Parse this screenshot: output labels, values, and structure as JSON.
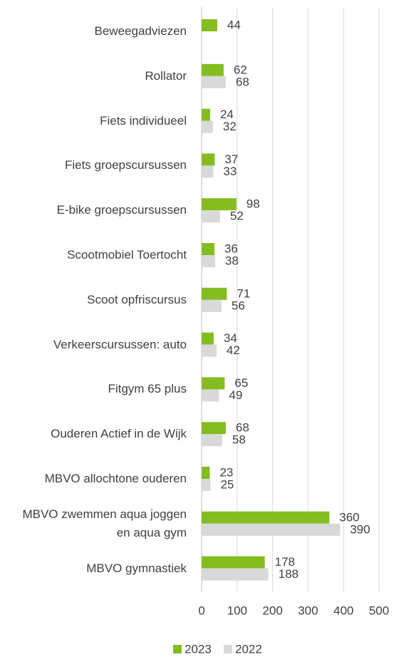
{
  "chart_data": {
    "type": "bar",
    "orientation": "horizontal",
    "categories": [
      "Beweegadviezen",
      "Rollator",
      "Fiets individueel",
      "Fiets groepscursussen",
      "E-bike groepscursussen",
      "Scootmobiel Toertocht",
      "Scoot opfriscursus",
      "Verkeerscursussen: auto",
      "Fitgym 65 plus",
      "Ouderen Actief in de Wijk",
      "MBVO allochtone ouderen",
      "MBVO zwemmen aqua joggen en aqua gym",
      "MBVO gymnastiek"
    ],
    "series": [
      {
        "name": "2023",
        "color": "#84bd1f",
        "values": [
          44,
          62,
          24,
          37,
          98,
          36,
          71,
          34,
          65,
          68,
          23,
          360,
          178
        ]
      },
      {
        "name": "2022",
        "color": "#d9d9d9",
        "values": [
          null,
          68,
          32,
          33,
          52,
          38,
          56,
          42,
          49,
          58,
          25,
          390,
          188
        ]
      }
    ],
    "xlim": [
      0,
      500
    ],
    "xticks": [
      0,
      100,
      200,
      300,
      400,
      500
    ],
    "grid": true,
    "legend": "bottom"
  }
}
